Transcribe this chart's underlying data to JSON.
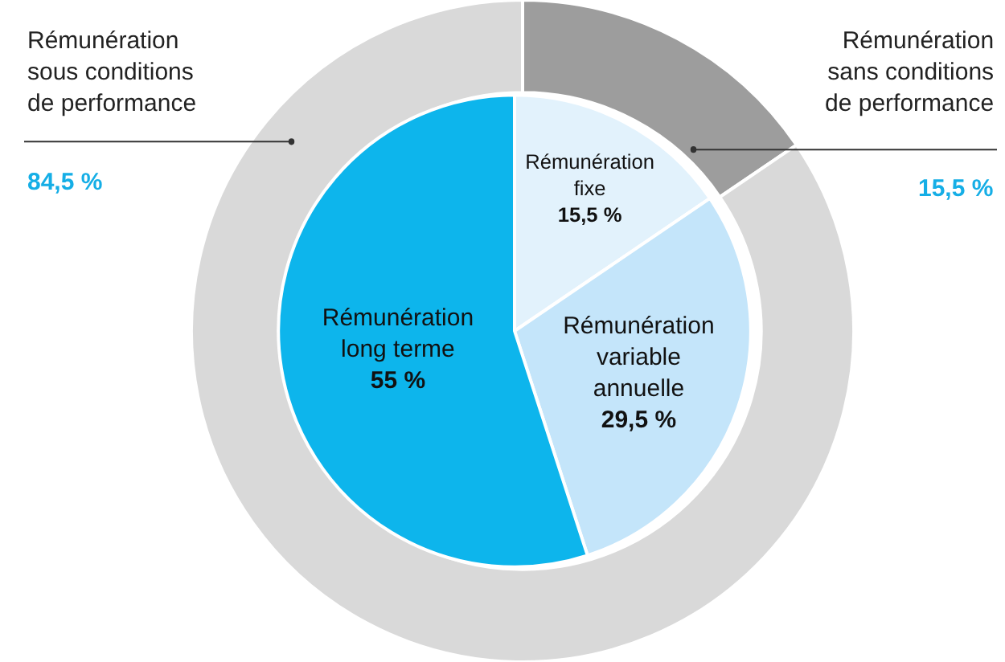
{
  "chart_data": [
    {
      "type": "donut",
      "categories": [
        "Rémunération sans conditions de performance",
        "Rémunération sous conditions de performance"
      ],
      "values": [
        15.5,
        84.5
      ],
      "colors": [
        "#9d9d9d",
        "#d9d9d9"
      ],
      "value_labels": [
        "15,5 %",
        "84,5 %"
      ]
    },
    {
      "type": "pie",
      "categories": [
        "Rémunération fixe",
        "Rémunération variable annuelle",
        "Rémunération long terme"
      ],
      "values": [
        15.5,
        29.5,
        55
      ],
      "colors": [
        "#e2f2fc",
        "#c4e5fa",
        "#0db5ec"
      ],
      "value_labels": [
        "15,5 %",
        "29,5 %",
        "55 %"
      ]
    }
  ]
}
